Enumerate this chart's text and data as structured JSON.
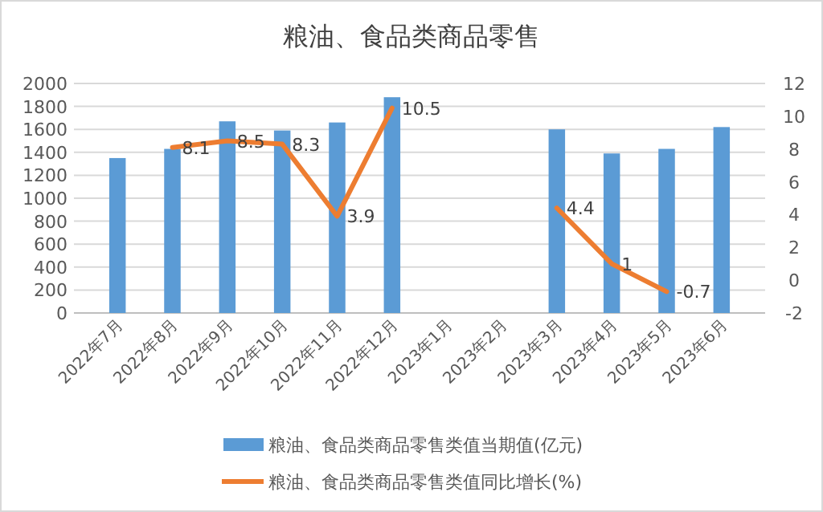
{
  "chart_data": {
    "type": "bar",
    "title": "粮油、食品类商品零售",
    "categories": [
      "2022年7月",
      "2022年8月",
      "2022年9月",
      "2022年10月",
      "2022年11月",
      "2022年12月",
      "2023年1月",
      "2023年2月",
      "2023年3月",
      "2023年4月",
      "2023年5月",
      "2023年6月"
    ],
    "series": [
      {
        "name": "粮油、食品类商品零售类值当期值(亿元)",
        "color": "#5b9bd5",
        "values": [
          1350,
          1430,
          1670,
          1590,
          1660,
          1880,
          null,
          null,
          1600,
          1390,
          1430,
          1620
        ]
      },
      {
        "name": "粮油、食品类商品零售类值同比增长(%)",
        "type": "line",
        "axis": "y2",
        "color": "#ed7d31",
        "values": [
          null,
          8.1,
          8.5,
          8.3,
          3.9,
          10.5,
          null,
          null,
          4.4,
          1,
          -0.7,
          null
        ],
        "data_labels": true
      }
    ],
    "ylim": [
      0,
      2000
    ],
    "yticks": [
      0,
      200,
      400,
      600,
      800,
      1000,
      1200,
      1400,
      1600,
      1800,
      2000
    ],
    "y2lim": [
      -2,
      12
    ],
    "y2ticks": [
      -2,
      0,
      2,
      4,
      6,
      8,
      10,
      12
    ],
    "grid": "y",
    "legend": "bottom"
  }
}
